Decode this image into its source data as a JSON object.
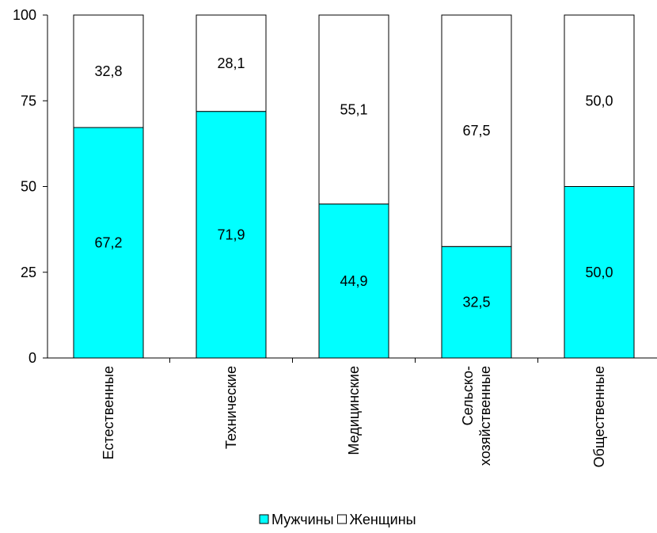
{
  "chart_data": {
    "type": "bar",
    "stacked": true,
    "categories": [
      [
        "Естественные"
      ],
      [
        "Технические"
      ],
      [
        "Медицинские"
      ],
      [
        "Сельско-",
        "хозяйственные"
      ],
      [
        "Общественные"
      ]
    ],
    "series": [
      {
        "name": "Мужчины",
        "color": "#00FFFF",
        "values": [
          67.2,
          71.9,
          44.9,
          32.5,
          50.0
        ],
        "labels": [
          "67,2",
          "71,9",
          "44,9",
          "32,5",
          "50,0"
        ]
      },
      {
        "name": "Женщины",
        "color": "#FFFFFF",
        "values": [
          32.8,
          28.1,
          55.1,
          67.5,
          50.0
        ],
        "labels": [
          "32,8",
          "28,1",
          "55,1",
          "67,5",
          "50,0"
        ]
      }
    ],
    "ylim": [
      0,
      100
    ],
    "yticks": [
      0,
      25,
      50,
      75,
      100
    ],
    "grid": false,
    "legend": "bottom",
    "xlabel": "",
    "ylabel": "",
    "title": ""
  }
}
